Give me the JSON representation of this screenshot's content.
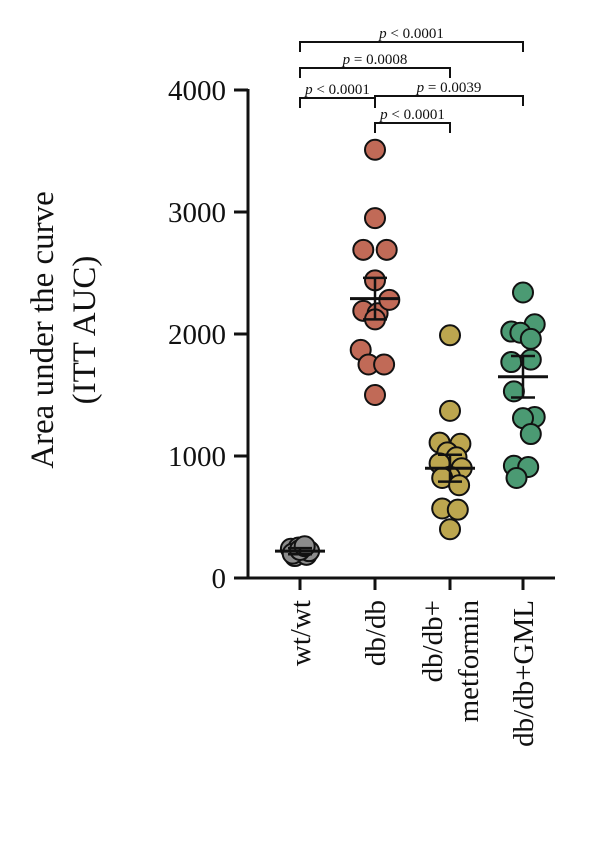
{
  "chart_data": {
    "type": "scatter",
    "ylabel": [
      "Area under the curve",
      "(ITT AUC)"
    ],
    "ylim": [
      0,
      4000
    ],
    "yticks": [
      0,
      1000,
      2000,
      3000,
      4000
    ],
    "grid": false,
    "categories": [
      {
        "lines": [
          "wt/wt"
        ]
      },
      {
        "lines": [
          "db/db"
        ]
      },
      {
        "lines": [
          "db/db+",
          "metformin"
        ]
      },
      {
        "lines": [
          "db/db+GML"
        ]
      }
    ],
    "series": [
      {
        "color": "#8c8c8c",
        "mean": 220,
        "sem": 25,
        "points": [
          [
            -0.35,
            240
          ],
          [
            -0.2,
            180
          ],
          [
            -0.05,
            250
          ],
          [
            0.1,
            210
          ],
          [
            0.25,
            190
          ],
          [
            0.35,
            220
          ],
          [
            -0.28,
            200
          ],
          [
            0.0,
            230
          ],
          [
            0.18,
            260
          ]
        ]
      },
      {
        "color": "#c16a57",
        "mean": 2290,
        "sem": 170,
        "points": [
          [
            0,
            3510
          ],
          [
            0,
            2950
          ],
          [
            -0.45,
            2690
          ],
          [
            0.45,
            2690
          ],
          [
            0,
            2440
          ],
          [
            -0.45,
            2190
          ],
          [
            0.1,
            2170
          ],
          [
            0.55,
            2280
          ],
          [
            0,
            2120
          ],
          [
            -0.55,
            1870
          ],
          [
            -0.25,
            1750
          ],
          [
            0.35,
            1750
          ],
          [
            0,
            1500
          ]
        ]
      },
      {
        "color": "#bca64f",
        "mean": 900,
        "sem": 110,
        "points": [
          [
            0,
            1990
          ],
          [
            0,
            1370
          ],
          [
            -0.4,
            1110
          ],
          [
            0.4,
            1100
          ],
          [
            -0.1,
            1030
          ],
          [
            0.25,
            990
          ],
          [
            -0.4,
            940
          ],
          [
            0.45,
            900
          ],
          [
            0,
            830
          ],
          [
            -0.3,
            820
          ],
          [
            0.35,
            760
          ],
          [
            -0.3,
            570
          ],
          [
            0.3,
            560
          ],
          [
            0,
            400
          ]
        ]
      },
      {
        "color": "#4b9a73",
        "mean": 1650,
        "sem": 170,
        "points": [
          [
            0,
            2340
          ],
          [
            -0.45,
            2020
          ],
          [
            0.45,
            2080
          ],
          [
            -0.1,
            2010
          ],
          [
            0.3,
            1960
          ],
          [
            -0.45,
            1770
          ],
          [
            0.3,
            1790
          ],
          [
            -0.35,
            1530
          ],
          [
            0.45,
            1320
          ],
          [
            0,
            1310
          ],
          [
            0.3,
            1180
          ],
          [
            -0.35,
            920
          ],
          [
            0.2,
            910
          ],
          [
            -0.25,
            820
          ]
        ]
      }
    ],
    "annotations": [
      {
        "from": 0,
        "to": 3,
        "label_p": "p",
        "label_rest": " < 0.0001"
      },
      {
        "from": 0,
        "to": 2,
        "label_p": "p",
        "label_rest": " = 0.0008"
      },
      {
        "from": 0,
        "to": 1,
        "label_p": "p",
        "label_rest": " < 0.0001"
      },
      {
        "from": 1,
        "to": 3,
        "label_p": "p",
        "label_rest": " = 0.0039"
      },
      {
        "from": 1,
        "to": 2,
        "label_p": "p",
        "label_rest": " < 0.0001"
      }
    ]
  }
}
